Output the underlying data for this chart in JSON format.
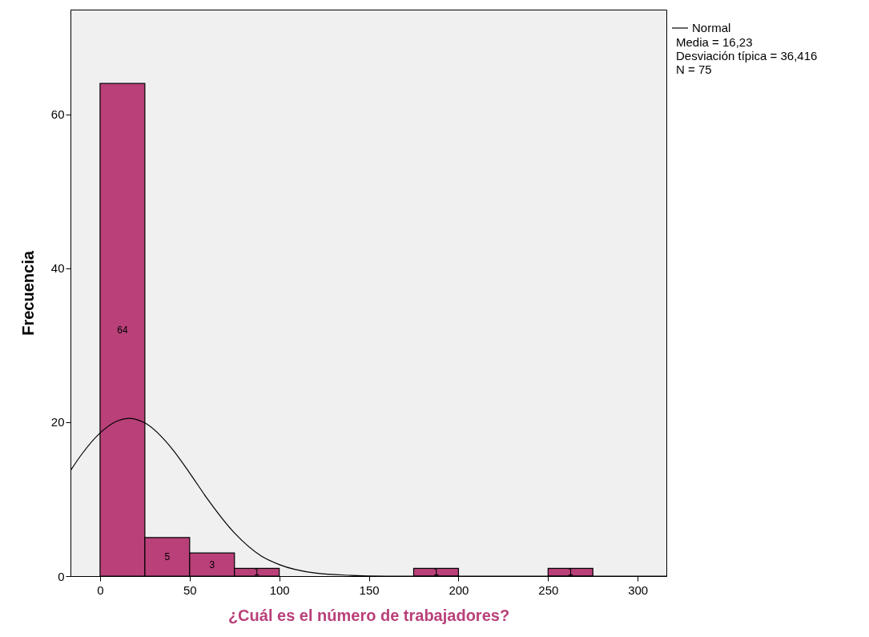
{
  "chart_data": {
    "type": "histogram",
    "xlabel": "¿Cuál es el número de trabajadores?",
    "ylabel": "Frecuencia",
    "bins": [
      0,
      25,
      50,
      75,
      100,
      125,
      150,
      175,
      200,
      225,
      250,
      275
    ],
    "values": [
      64,
      5,
      3,
      1,
      0,
      0,
      0,
      1,
      0,
      0,
      1
    ],
    "value_labels": [
      "64",
      "5",
      "3",
      "1",
      null,
      null,
      null,
      "1",
      null,
      null,
      "1"
    ],
    "color": "#b94079",
    "series": [
      {
        "type": "line",
        "name": "Normal",
        "color": "#000000",
        "x": [
          -16.5,
          -10,
          0,
          10,
          16,
          25,
          40,
          50,
          60,
          75,
          90,
          100,
          120,
          140,
          160,
          200,
          250,
          316
        ],
        "values": [
          13.7,
          15.9,
          18.6,
          20.2,
          20.5,
          19.9,
          16.6,
          13.4,
          10.0,
          5.6,
          2.6,
          1.5,
          0.4,
          0.1,
          0,
          0,
          0,
          0
        ]
      }
    ],
    "xlim": [
      -16.5,
      316
    ],
    "xticks": [
      0,
      50,
      100,
      150,
      200,
      250,
      300
    ],
    "ylim": [
      0,
      73.6
    ],
    "yticks": [
      0,
      20,
      40,
      60
    ],
    "grid": false,
    "legend": "top right",
    "annotations": [
      "Media = 16,23",
      "Desviación típica = 36,416",
      "N = 75"
    ]
  }
}
